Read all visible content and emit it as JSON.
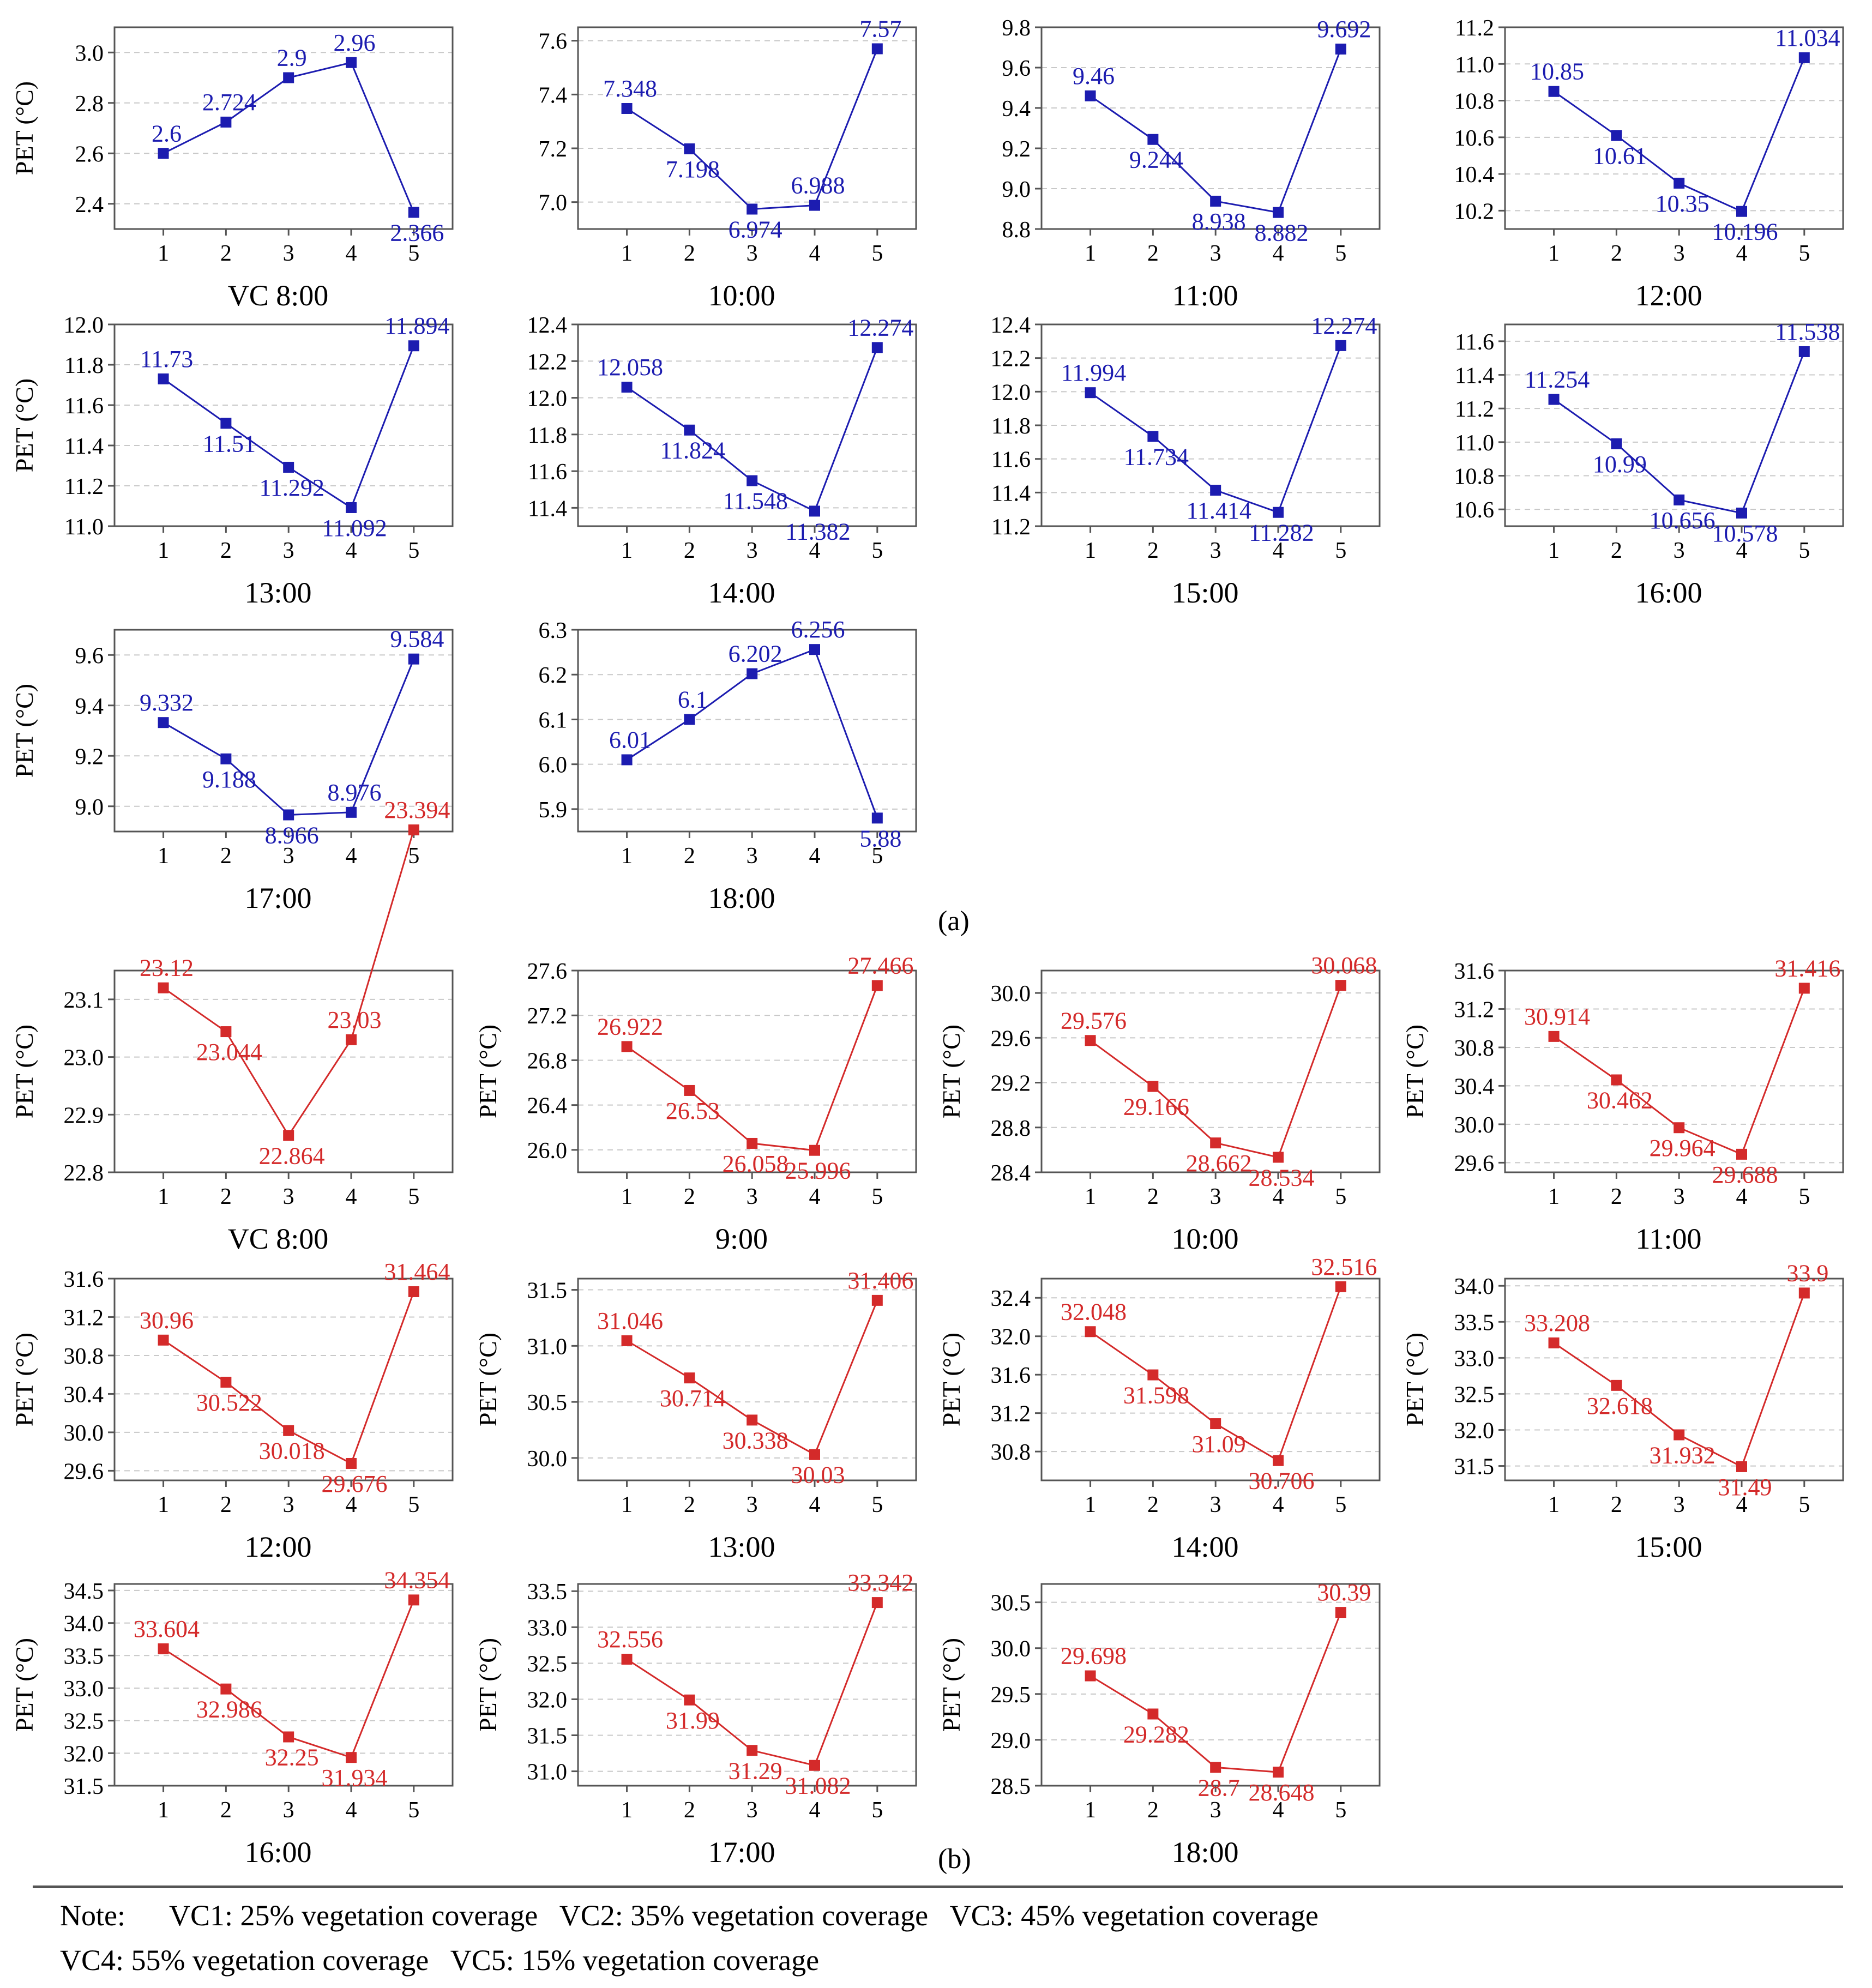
{
  "figure": {
    "y_axis_label": "PET (°C)",
    "x_ticks": [
      "1",
      "2",
      "3",
      "4",
      "5"
    ],
    "panel_a_label": "(a)",
    "panel_b_label": "(b)",
    "colors": {
      "a": "#1c1cb0",
      "b": "#d42a2a",
      "grid": "#c8c8c8",
      "axis": "#555555"
    }
  },
  "chart_data": [
    {
      "type": "line",
      "panel": "a",
      "title": "VC 8:00",
      "ylabel": "PET (°C)",
      "x": [
        1,
        2,
        3,
        4,
        5
      ],
      "values": [
        2.6,
        2.724,
        2.9,
        2.96,
        2.366
      ],
      "labels": [
        "2.6",
        "2.724",
        "2.9",
        "2.96",
        "2.366"
      ],
      "ylim": [
        2.3,
        3.1
      ],
      "yticks": [
        "2.4",
        "2.6",
        "2.8",
        "3.0"
      ]
    },
    {
      "type": "line",
      "panel": "a",
      "title": "10:00",
      "ylabel": "",
      "x": [
        1,
        2,
        3,
        4,
        5
      ],
      "values": [
        7.348,
        7.198,
        6.974,
        6.988,
        7.57
      ],
      "labels": [
        "7.348",
        "7.198",
        "6.974",
        "6.988",
        "7.57"
      ],
      "ylim": [
        6.9,
        7.65
      ],
      "yticks": [
        "7.0",
        "7.2",
        "7.4",
        "7.6"
      ]
    },
    {
      "type": "line",
      "panel": "a",
      "title": "11:00",
      "ylabel": "",
      "x": [
        1,
        2,
        3,
        4,
        5
      ],
      "values": [
        9.46,
        9.244,
        8.938,
        8.882,
        9.692
      ],
      "labels": [
        "9.46",
        "9.244",
        "8.938",
        "8.882",
        "9.692"
      ],
      "ylim": [
        8.8,
        9.8
      ],
      "yticks": [
        "8.8",
        "9.0",
        "9.2",
        "9.4",
        "9.6",
        "9.8"
      ]
    },
    {
      "type": "line",
      "panel": "a",
      "title": "12:00",
      "ylabel": "",
      "x": [
        1,
        2,
        3,
        4,
        5
      ],
      "values": [
        10.85,
        10.61,
        10.35,
        10.196,
        11.034
      ],
      "labels": [
        "10.85",
        "10.61",
        "10.35",
        "10.196",
        "11.034"
      ],
      "ylim": [
        10.1,
        11.2
      ],
      "yticks": [
        "10.2",
        "10.4",
        "10.6",
        "10.8",
        "11.0",
        "11.2"
      ]
    },
    {
      "type": "line",
      "panel": "a",
      "title": "13:00",
      "ylabel": "PET (°C)",
      "x": [
        1,
        2,
        3,
        4,
        5
      ],
      "values": [
        11.73,
        11.51,
        11.292,
        11.092,
        11.894
      ],
      "labels": [
        "11.73",
        "11.51",
        "11.292",
        "11.092",
        "11.894"
      ],
      "ylim": [
        11.0,
        12.0
      ],
      "yticks": [
        "11.0",
        "11.2",
        "11.4",
        "11.6",
        "11.8",
        "12.0"
      ]
    },
    {
      "type": "line",
      "panel": "a",
      "title": "14:00",
      "ylabel": "",
      "x": [
        1,
        2,
        3,
        4,
        5
      ],
      "values": [
        12.058,
        11.824,
        11.548,
        11.382,
        12.274
      ],
      "labels": [
        "12.058",
        "11.824",
        "11.548",
        "11.382",
        "12.274"
      ],
      "ylim": [
        11.3,
        12.4
      ],
      "yticks": [
        "11.4",
        "11.6",
        "11.8",
        "12.0",
        "12.2",
        "12.4"
      ]
    },
    {
      "type": "line",
      "panel": "a",
      "title": "15:00",
      "ylabel": "",
      "x": [
        1,
        2,
        3,
        4,
        5
      ],
      "values": [
        11.994,
        11.734,
        11.414,
        11.282,
        12.274
      ],
      "labels": [
        "11.994",
        "11.734",
        "11.414",
        "11.282",
        "12.274"
      ],
      "ylim": [
        11.2,
        12.4
      ],
      "yticks": [
        "11.2",
        "11.4",
        "11.6",
        "11.8",
        "12.0",
        "12.2",
        "12.4"
      ]
    },
    {
      "type": "line",
      "panel": "a",
      "title": "16:00",
      "ylabel": "",
      "x": [
        1,
        2,
        3,
        4,
        5
      ],
      "values": [
        11.254,
        10.99,
        10.656,
        10.578,
        11.538
      ],
      "labels": [
        "11.254",
        "10.99",
        "10.656",
        "10.578",
        "11.538"
      ],
      "ylim": [
        10.5,
        11.7
      ],
      "yticks": [
        "10.6",
        "10.8",
        "11.0",
        "11.2",
        "11.4",
        "11.6"
      ]
    },
    {
      "type": "line",
      "panel": "a",
      "title": "17:00",
      "ylabel": "PET (°C)",
      "x": [
        1,
        2,
        3,
        4,
        5
      ],
      "values": [
        9.332,
        9.188,
        8.966,
        8.976,
        9.584
      ],
      "labels": [
        "9.332",
        "9.188",
        "8.966",
        "8.976",
        "9.584"
      ],
      "ylim": [
        8.9,
        9.7
      ],
      "yticks": [
        "9.0",
        "9.2",
        "9.4",
        "9.6"
      ]
    },
    {
      "type": "line",
      "panel": "a",
      "title": "18:00",
      "ylabel": "",
      "x": [
        1,
        2,
        3,
        4,
        5
      ],
      "values": [
        6.01,
        6.1,
        6.202,
        6.256,
        5.88
      ],
      "labels": [
        "6.01",
        "6.1",
        "6.202",
        "6.256",
        "5.88"
      ],
      "ylim": [
        5.85,
        6.3
      ],
      "yticks": [
        "5.9",
        "6.0",
        "6.1",
        "6.2",
        "6.3"
      ]
    },
    {
      "type": "line",
      "panel": "b",
      "title": "VC 8:00",
      "ylabel": "PET (°C)",
      "x": [
        1,
        2,
        3,
        4,
        5
      ],
      "values": [
        23.12,
        23.044,
        22.864,
        23.03,
        23.394
      ],
      "labels": [
        "23.12",
        "23.044",
        "22.864",
        "23.03",
        "23.394"
      ],
      "ylim": [
        22.8,
        23.15
      ],
      "yticks": [
        "22.8",
        "22.9",
        "23.0",
        "23.1"
      ]
    },
    {
      "type": "line",
      "panel": "b",
      "title": "9:00",
      "ylabel": "PET (°C)",
      "x": [
        1,
        2,
        3,
        4,
        5
      ],
      "values": [
        26.922,
        26.53,
        26.058,
        25.996,
        27.466
      ],
      "labels": [
        "26.922",
        "26.53",
        "26.058",
        "25.996",
        "27.466"
      ],
      "ylim": [
        25.8,
        27.6
      ],
      "yticks": [
        "26.0",
        "26.4",
        "26.8",
        "27.2",
        "27.6"
      ]
    },
    {
      "type": "line",
      "panel": "b",
      "title": "10:00",
      "ylabel": "PET (°C)",
      "x": [
        1,
        2,
        3,
        4,
        5
      ],
      "values": [
        29.576,
        29.166,
        28.662,
        28.534,
        30.068
      ],
      "labels": [
        "29.576",
        "29.166",
        "28.662",
        "28.534",
        "30.068"
      ],
      "ylim": [
        28.4,
        30.2
      ],
      "yticks": [
        "28.4",
        "28.8",
        "29.2",
        "29.6",
        "30.0"
      ]
    },
    {
      "type": "line",
      "panel": "b",
      "title": "11:00",
      "ylabel": "PET (°C)",
      "x": [
        1,
        2,
        3,
        4,
        5
      ],
      "values": [
        30.914,
        30.462,
        29.964,
        29.688,
        31.416
      ],
      "labels": [
        "30.914",
        "30.462",
        "29.964",
        "29.688",
        "31.416"
      ],
      "ylim": [
        29.5,
        31.6
      ],
      "yticks": [
        "29.6",
        "30.0",
        "30.4",
        "30.8",
        "31.2",
        "31.6"
      ]
    },
    {
      "type": "line",
      "panel": "b",
      "title": "12:00",
      "ylabel": "PET (°C)",
      "x": [
        1,
        2,
        3,
        4,
        5
      ],
      "values": [
        30.96,
        30.522,
        30.018,
        29.676,
        31.464
      ],
      "labels": [
        "30.96",
        "30.522",
        "30.018",
        "29.676",
        "31.464"
      ],
      "ylim": [
        29.5,
        31.6
      ],
      "yticks": [
        "29.6",
        "30.0",
        "30.4",
        "30.8",
        "31.2",
        "31.6"
      ]
    },
    {
      "type": "line",
      "panel": "b",
      "title": "13:00",
      "ylabel": "PET (°C)",
      "x": [
        1,
        2,
        3,
        4,
        5
      ],
      "values": [
        31.046,
        30.714,
        30.338,
        30.03,
        31.406
      ],
      "labels": [
        "31.046",
        "30.714",
        "30.338",
        "30.03",
        "31.406"
      ],
      "ylim": [
        29.8,
        31.6
      ],
      "yticks": [
        "30.0",
        "30.5",
        "31.0",
        "31.5"
      ]
    },
    {
      "type": "line",
      "panel": "b",
      "title": "14:00",
      "ylabel": "PET (°C)",
      "x": [
        1,
        2,
        3,
        4,
        5
      ],
      "values": [
        32.048,
        31.598,
        31.09,
        30.706,
        32.516
      ],
      "labels": [
        "32.048",
        "31.598",
        "31.09",
        "30.706",
        "32.516"
      ],
      "ylim": [
        30.5,
        32.6
      ],
      "yticks": [
        "30.8",
        "31.2",
        "31.6",
        "32.0",
        "32.4"
      ]
    },
    {
      "type": "line",
      "panel": "b",
      "title": "15:00",
      "ylabel": "PET (°C)",
      "x": [
        1,
        2,
        3,
        4,
        5
      ],
      "values": [
        33.208,
        32.618,
        31.932,
        31.49,
        33.9
      ],
      "labels": [
        "33.208",
        "32.618",
        "31.932",
        "31.49",
        "33.9"
      ],
      "ylim": [
        31.3,
        34.1
      ],
      "yticks": [
        "31.5",
        "32.0",
        "32.5",
        "33.0",
        "33.5",
        "34.0"
      ]
    },
    {
      "type": "line",
      "panel": "b",
      "title": "16:00",
      "ylabel": "PET (°C)",
      "x": [
        1,
        2,
        3,
        4,
        5
      ],
      "values": [
        33.604,
        32.986,
        32.25,
        31.934,
        34.354
      ],
      "labels": [
        "33.604",
        "32.986",
        "32.25",
        "31.934",
        "34.354"
      ],
      "ylim": [
        31.5,
        34.6
      ],
      "yticks": [
        "31.5",
        "32.0",
        "32.5",
        "33.0",
        "33.5",
        "34.0",
        "34.5"
      ]
    },
    {
      "type": "line",
      "panel": "b",
      "title": "17:00",
      "ylabel": "PET (°C)",
      "x": [
        1,
        2,
        3,
        4,
        5
      ],
      "values": [
        32.556,
        31.99,
        31.29,
        31.082,
        33.342
      ],
      "labels": [
        "32.556",
        "31.99",
        "31.29",
        "31.082",
        "33.342"
      ],
      "ylim": [
        30.8,
        33.6
      ],
      "yticks": [
        "31.0",
        "31.5",
        "32.0",
        "32.5",
        "33.0",
        "33.5"
      ]
    },
    {
      "type": "line",
      "panel": "b",
      "title": "18:00",
      "ylabel": "PET (°C)",
      "x": [
        1,
        2,
        3,
        4,
        5
      ],
      "values": [
        29.698,
        29.282,
        28.7,
        28.648,
        30.39
      ],
      "labels": [
        "29.698",
        "29.282",
        "28.7",
        "28.648",
        "30.39"
      ],
      "ylim": [
        28.5,
        30.7
      ],
      "yticks": [
        "28.5",
        "29.0",
        "29.5",
        "30.0",
        "30.5"
      ]
    }
  ],
  "note": {
    "prefix": "Note:",
    "line1": "VC1: 25% vegetation coverage   VC2: 35% vegetation coverage   VC3: 45% vegetation coverage",
    "line2": "VC4: 55% vegetation coverage   VC5: 15% vegetation coverage"
  }
}
